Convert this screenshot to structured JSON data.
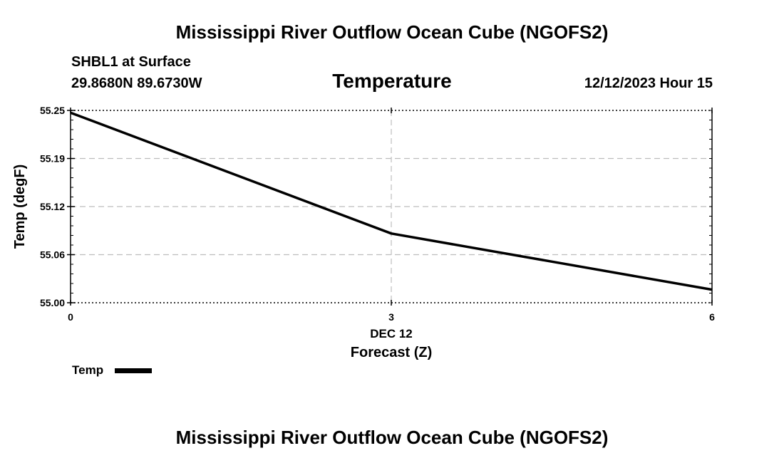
{
  "header": {
    "title_top": "Mississippi River Outflow Ocean Cube (NGOFS2)",
    "station": "SHBL1 at Surface",
    "coords": "29.8680N  89.6730W",
    "datetime": "12/12/2023 Hour 15",
    "title_bottom": "Mississippi River Outflow Ocean Cube (NGOFS2)"
  },
  "chart_data": {
    "type": "line",
    "title": "Temperature",
    "xlabel": "Forecast (Z)",
    "ylabel": "Temp (degF)",
    "x_date_label": "DEC 12",
    "xlim": [
      0,
      6
    ],
    "ylim": [
      55.0,
      55.25
    ],
    "x_ticks": [
      0,
      3,
      6
    ],
    "x_tick_labels": [
      "0",
      "3",
      "6"
    ],
    "y_ticks": [
      55.0,
      55.0625,
      55.125,
      55.1875,
      55.25
    ],
    "y_tick_labels": [
      "55.00",
      "55.06",
      "55.12",
      "55.19",
      "55.25"
    ],
    "grid": true,
    "series": [
      {
        "name": "Temp",
        "color": "#000000",
        "x": [
          0,
          3,
          6
        ],
        "y": [
          55.247,
          55.09,
          55.017
        ]
      }
    ],
    "legend": [
      "Temp"
    ]
  }
}
